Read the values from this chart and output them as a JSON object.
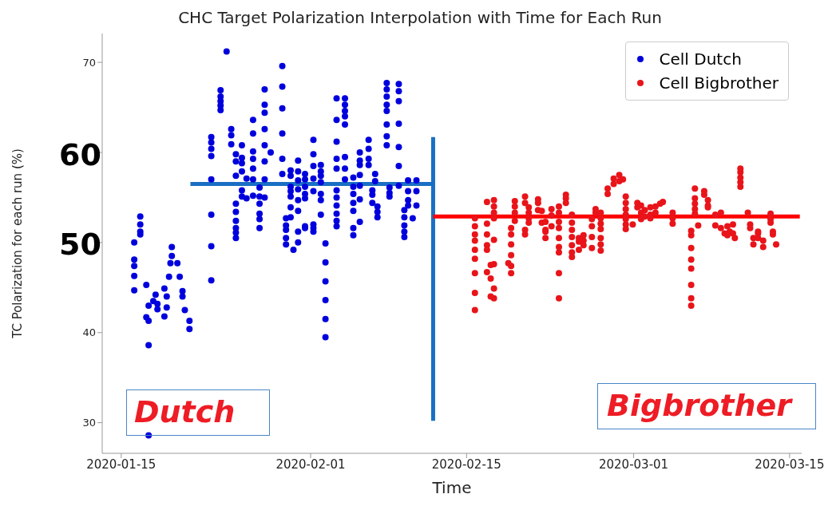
{
  "chart_data": {
    "type": "scatter",
    "title": "CHC Target Polarization Interpolation with Time for Each Run",
    "xlabel": "Time",
    "ylabel": "TC Polarization for each run (%)",
    "xlim": [
      "2020-01-13T07:00",
      "2020-03-16T02:00"
    ],
    "xticks": [
      "2020-01-15",
      "2020-02-01",
      "2020-02-15",
      "2020-03-01",
      "2020-03-15"
    ],
    "ylim": [
      26.6,
      73.2
    ],
    "yticks": [
      30,
      40,
      {
        "value": 50,
        "label": null
      },
      {
        "value": 60,
        "label": null
      },
      70
    ],
    "legend": "top right",
    "marker": "circle",
    "annotations": [
      "60",
      "50",
      "Dutch",
      "Bigbrother"
    ],
    "series": [
      {
        "name": "Cell Dutch",
        "color": "#0000dd",
        "x": [
          "2020-01-16T04:00",
          "2020-01-16T04:00",
          "2020-01-16T04:00",
          "2020-01-16T04:00",
          "2020-01-16T04:00",
          "2020-01-16T17:00",
          "2020-01-16T17:00",
          "2020-01-16T17:00",
          "2020-01-16T17:00",
          "2020-01-17T06:00",
          "2020-01-17T06:00",
          "2020-01-17T11:00",
          "2020-01-17T11:00",
          "2020-01-17T11:00",
          "2020-01-17T11:00",
          "2020-01-17T21:00",
          "2020-01-18T02:00",
          "2020-01-18T06:00",
          "2020-01-18T06:00",
          "2020-01-18T21:00",
          "2020-01-18T21:00",
          "2020-01-19T02:00",
          "2020-01-19T02:00",
          "2020-01-19T07:00",
          "2020-01-19T10:00",
          "2020-01-19T13:00",
          "2020-01-19T13:00",
          "2020-01-20T01:00",
          "2020-01-20T06:00",
          "2020-01-20T12:00",
          "2020-01-20T12:00",
          "2020-01-20T17:00",
          "2020-01-21T03:00",
          "2020-01-21T03:00",
          "2020-01-23T02:00",
          "2020-01-23T02:00",
          "2020-01-23T02:00",
          "2020-01-23T02:00",
          "2020-01-23T02:00",
          "2020-01-23T02:00",
          "2020-01-23T02:00",
          "2020-01-23T02:00",
          "2020-01-23T22:00",
          "2020-01-23T22:00",
          "2020-01-23T22:00",
          "2020-01-23T22:00",
          "2020-01-23T22:00",
          "2020-01-24T11:00",
          "2020-01-24T21:00",
          "2020-01-24T21:00",
          "2020-01-24T21:00",
          "2020-01-25T07:00",
          "2020-01-25T07:00",
          "2020-01-25T07:00",
          "2020-01-25T07:00",
          "2020-01-25T07:00",
          "2020-01-25T07:00",
          "2020-01-25T07:00",
          "2020-01-25T07:00",
          "2020-01-25T07:00",
          "2020-01-25T20:00",
          "2020-01-25T20:00",
          "2020-01-25T20:00",
          "2020-01-25T20:00",
          "2020-01-25T20:00",
          "2020-01-25T20:00",
          "2020-01-26T06:00",
          "2020-01-26T06:00",
          "2020-01-26T20:00",
          "2020-01-26T20:00",
          "2020-01-26T20:00",
          "2020-01-26T20:00",
          "2020-01-26T20:00",
          "2020-01-26T20:00",
          "2020-01-26T20:00",
          "2020-01-27T10:00",
          "2020-01-27T10:00",
          "2020-01-27T10:00",
          "2020-01-27T10:00",
          "2020-01-27T10:00",
          "2020-01-27T10:00",
          "2020-01-27T21:00",
          "2020-01-27T21:00",
          "2020-01-27T21:00",
          "2020-01-27T21:00",
          "2020-01-27T21:00",
          "2020-01-27T21:00",
          "2020-01-27T21:00",
          "2020-01-27T21:00",
          "2020-01-28T10:00",
          "2020-01-29T11:00",
          "2020-01-29T11:00",
          "2020-01-29T11:00",
          "2020-01-29T11:00",
          "2020-01-29T11:00",
          "2020-01-29T11:00",
          "2020-01-29T19:00",
          "2020-01-29T19:00",
          "2020-01-29T19:00",
          "2020-01-29T19:00",
          "2020-01-29T19:00",
          "2020-01-30T05:00",
          "2020-01-30T05:00",
          "2020-01-30T05:00",
          "2020-01-30T05:00",
          "2020-01-30T05:00",
          "2020-01-30T05:00",
          "2020-01-30T05:00",
          "2020-01-30T11:00",
          "2020-01-30T21:00",
          "2020-01-30T21:00",
          "2020-01-30T21:00",
          "2020-01-30T21:00",
          "2020-01-30T21:00",
          "2020-01-30T21:00",
          "2020-01-30T21:00",
          "2020-01-30T21:00",
          "2020-01-31T12:00",
          "2020-01-31T12:00",
          "2020-01-31T12:00",
          "2020-01-31T12:00",
          "2020-01-31T12:00",
          "2020-01-31T12:00",
          "2020-01-31T12:00",
          "2020-02-01T06:00",
          "2020-02-01T06:00",
          "2020-02-01T06:00",
          "2020-02-01T06:00",
          "2020-02-01T06:00",
          "2020-02-01T06:00",
          "2020-02-01T06:00",
          "2020-02-01T06:00",
          "2020-02-01T22:00",
          "2020-02-01T22:00",
          "2020-02-01T22:00",
          "2020-02-01T22:00",
          "2020-02-01T22:00",
          "2020-02-01T22:00",
          "2020-02-01T22:00",
          "2020-02-02T08:00",
          "2020-02-02T08:00",
          "2020-02-02T08:00",
          "2020-02-02T08:00",
          "2020-02-02T08:00",
          "2020-02-02T08:00",
          "2020-02-03T08:00",
          "2020-02-03T08:00",
          "2020-02-03T08:00",
          "2020-02-03T08:00",
          "2020-02-03T08:00",
          "2020-02-03T08:00",
          "2020-02-03T08:00",
          "2020-02-03T08:00",
          "2020-02-03T08:00",
          "2020-02-03T08:00",
          "2020-02-03T08:00",
          "2020-02-04T02:00",
          "2020-02-04T02:00",
          "2020-02-04T02:00",
          "2020-02-04T02:00",
          "2020-02-04T02:00",
          "2020-02-04T02:00",
          "2020-02-04T02:00",
          "2020-02-04T02:00",
          "2020-02-04T20:00",
          "2020-02-04T20:00",
          "2020-02-04T20:00",
          "2020-02-04T20:00",
          "2020-02-04T20:00",
          "2020-02-04T20:00",
          "2020-02-04T20:00",
          "2020-02-05T10:00",
          "2020-02-05T10:00",
          "2020-02-05T10:00",
          "2020-02-05T10:00",
          "2020-02-05T10:00",
          "2020-02-05T10:00",
          "2020-02-05T10:00",
          "2020-02-06T05:00",
          "2020-02-06T05:00",
          "2020-02-06T05:00",
          "2020-02-06T05:00",
          "2020-02-06T13:00",
          "2020-02-06T13:00",
          "2020-02-06T13:00",
          "2020-02-06T19:00",
          "2020-02-06T19:00",
          "2020-02-07T00:00",
          "2020-02-07T00:00",
          "2020-02-07T00:00",
          "2020-02-07T20:00",
          "2020-02-07T20:00",
          "2020-02-07T20:00",
          "2020-02-07T20:00",
          "2020-02-07T20:00",
          "2020-02-07T20:00",
          "2020-02-07T20:00",
          "2020-02-07T20:00",
          "2020-02-08T02:00",
          "2020-02-08T02:00",
          "2020-02-08T02:00",
          "2020-02-08T22:00",
          "2020-02-08T22:00",
          "2020-02-08T22:00",
          "2020-02-08T22:00",
          "2020-02-08T22:00",
          "2020-02-08T22:00",
          "2020-02-08T22:00",
          "2020-02-09T10:00",
          "2020-02-09T10:00",
          "2020-02-09T10:00",
          "2020-02-09T10:00",
          "2020-02-09T10:00",
          "2020-02-09T18:00",
          "2020-02-09T18:00",
          "2020-02-09T18:00",
          "2020-02-09T18:00",
          "2020-02-10T04:00",
          "2020-02-10T12:00",
          "2020-02-10T12:00",
          "2020-02-10T12:00"
        ],
        "values": [
          50.0,
          48.1,
          47.4,
          46.3,
          44.7,
          52.9,
          52.0,
          51.2,
          50.9,
          45.3,
          41.7,
          43.0,
          41.3,
          38.6,
          28.6,
          43.5,
          44.2,
          43.2,
          42.6,
          44.9,
          41.8,
          44.0,
          42.8,
          46.2,
          47.7,
          48.5,
          49.5,
          47.7,
          46.2,
          44.6,
          44.0,
          42.5,
          41.3,
          40.4,
          61.7,
          61.1,
          60.4,
          59.6,
          57.0,
          53.1,
          49.6,
          45.8,
          66.9,
          66.2,
          65.7,
          65.2,
          64.7,
          71.2,
          62.6,
          61.9,
          60.9,
          59.8,
          59.0,
          57.4,
          54.3,
          53.4,
          52.4,
          51.6,
          51.1,
          50.5,
          60.8,
          59.4,
          58.8,
          57.9,
          55.8,
          55.1,
          57.1,
          54.9,
          63.6,
          62.1,
          60.1,
          59.3,
          58.2,
          57.0,
          55.2,
          56.1,
          55.1,
          54.3,
          53.2,
          52.6,
          51.6,
          67.0,
          65.3,
          64.4,
          62.6,
          60.8,
          59.0,
          57.0,
          55.0,
          60.0,
          69.6,
          67.3,
          64.9,
          62.1,
          59.3,
          57.6,
          52.7,
          51.9,
          51.4,
          50.5,
          49.8,
          58.0,
          57.4,
          56.2,
          55.7,
          55.1,
          53.9,
          52.8,
          49.2,
          59.1,
          57.9,
          56.9,
          55.9,
          54.7,
          53.5,
          51.2,
          50.0,
          57.6,
          57.0,
          56.2,
          55.4,
          54.9,
          51.8,
          51.6,
          61.4,
          59.8,
          58.5,
          57.1,
          55.7,
          52.0,
          51.6,
          51.2,
          58.6,
          57.9,
          57.4,
          56.7,
          55.4,
          54.7,
          53.1,
          49.9,
          47.8,
          45.7,
          43.6,
          41.5,
          39.5,
          66.0,
          63.6,
          61.2,
          59.3,
          58.2,
          55.8,
          55.0,
          54.1,
          53.2,
          52.4,
          51.8,
          66.0,
          65.3,
          64.6,
          64.0,
          63.1,
          59.5,
          58.2,
          57.0,
          57.2,
          56.2,
          55.4,
          54.4,
          53.5,
          51.6,
          50.8,
          60.0,
          59.1,
          58.6,
          57.5,
          56.3,
          54.8,
          52.3,
          61.4,
          60.4,
          59.3,
          58.6,
          55.8,
          55.3,
          54.4,
          57.6,
          56.8,
          54.0,
          53.4,
          52.8,
          67.7,
          67.0,
          66.2,
          65.3,
          64.6,
          63.1,
          61.8,
          60.8,
          56.1,
          55.5,
          55.1,
          67.6,
          66.8,
          65.7,
          63.2,
          60.6,
          58.5,
          56.3,
          53.6,
          52.8,
          51.9,
          51.2,
          50.6,
          56.9,
          55.7,
          54.7,
          54.1,
          52.7,
          56.9,
          55.7,
          54.1
        ]
      },
      {
        "name": "Cell Bigbrother",
        "color": "#e8141a",
        "x": [
          "2020-02-15T18:00",
          "2020-02-15T18:00",
          "2020-02-15T18:00",
          "2020-02-15T18:00",
          "2020-02-15T18:00",
          "2020-02-15T18:00",
          "2020-02-15T18:00",
          "2020-02-15T18:00",
          "2020-02-15T18:00",
          "2020-02-16T20:00",
          "2020-02-16T20:00",
          "2020-02-16T20:00",
          "2020-02-16T20:00",
          "2020-02-16T20:00",
          "2020-02-16T20:00",
          "2020-02-17T11:00",
          "2020-02-17T11:00",
          "2020-02-17T11:00",
          "2020-02-17T11:00",
          "2020-02-17T11:00",
          "2020-02-17T11:00",
          "2020-02-17T11:00",
          "2020-02-17T11:00",
          "2020-02-17T04:00",
          "2020-02-17T04:00",
          "2020-02-17T04:00",
          "2020-02-19T00:00",
          "2020-02-19T00:00",
          "2020-02-19T00:00",
          "2020-02-19T00:00",
          "2020-02-19T00:00",
          "2020-02-19T00:00",
          "2020-02-19T08:00",
          "2020-02-19T08:00",
          "2020-02-19T08:00",
          "2020-02-19T08:00",
          "2020-02-18T18:00",
          "2020-02-20T06:00",
          "2020-02-20T06:00",
          "2020-02-20T06:00",
          "2020-02-20T06:00",
          "2020-02-20T14:00",
          "2020-02-20T14:00",
          "2020-02-20T14:00",
          "2020-02-20T14:00",
          "2020-02-21T10:00",
          "2020-02-21T10:00",
          "2020-02-21T10:00",
          "2020-02-21T18:00",
          "2020-02-21T18:00",
          "2020-02-22T02:00",
          "2020-02-22T02:00",
          "2020-02-22T02:00",
          "2020-02-22T02:00",
          "2020-02-22T15:00",
          "2020-02-22T15:00",
          "2020-02-22T15:00",
          "2020-02-23T07:00",
          "2020-02-23T07:00",
          "2020-02-23T07:00",
          "2020-02-23T07:00",
          "2020-02-23T07:00",
          "2020-02-23T07:00",
          "2020-02-23T07:00",
          "2020-02-23T07:00",
          "2020-02-23T07:00",
          "2020-02-23T22:00",
          "2020-02-23T22:00",
          "2020-02-23T22:00",
          "2020-02-24T11:00",
          "2020-02-24T11:00",
          "2020-02-24T11:00",
          "2020-02-24T11:00",
          "2020-02-24T11:00",
          "2020-02-24T11:00",
          "2020-02-24T11:00",
          "2020-02-25T02:00",
          "2020-02-25T02:00",
          "2020-02-25T02:00",
          "2020-02-25T12:00",
          "2020-02-25T12:00",
          "2020-02-25T12:00",
          "2020-02-26T06:00",
          "2020-02-26T06:00",
          "2020-02-26T06:00",
          "2020-02-26T06:00",
          "2020-02-26T14:00",
          "2020-02-26T14:00",
          "2020-02-27T01:00",
          "2020-02-27T01:00",
          "2020-02-27T01:00",
          "2020-02-27T01:00",
          "2020-02-27T01:00",
          "2020-02-27T01:00",
          "2020-02-27T01:00",
          "2020-02-27T16:00",
          "2020-02-27T16:00",
          "2020-02-28T05:00",
          "2020-02-28T05:00",
          "2020-02-28T17:00",
          "2020-02-28T17:00",
          "2020-02-29T01:00",
          "2020-02-29T07:00",
          "2020-02-29T07:00",
          "2020-02-29T07:00",
          "2020-02-29T07:00",
          "2020-02-29T07:00",
          "2020-02-29T07:00",
          "2020-02-29T07:00",
          "2020-02-29T22:00",
          "2020-03-01T08:00",
          "2020-03-01T08:00",
          "2020-03-01T16:00",
          "2020-03-01T16:00",
          "2020-03-01T16:00",
          "2020-03-02T00:00",
          "2020-03-02T00:00",
          "2020-03-02T12:00",
          "2020-03-02T12:00",
          "2020-03-02T12:00",
          "2020-03-02T23:00",
          "2020-03-02T23:00",
          "2020-03-03T09:00",
          "2020-03-03T15:00",
          "2020-03-04T12:00",
          "2020-03-04T12:00",
          "2020-03-04T12:00",
          "2020-03-06T04:00",
          "2020-03-06T04:00",
          "2020-03-06T04:00",
          "2020-03-06T04:00",
          "2020-03-06T04:00",
          "2020-03-06T04:00",
          "2020-03-06T04:00",
          "2020-03-06T04:00",
          "2020-03-06T12:00",
          "2020-03-06T12:00",
          "2020-03-06T12:00",
          "2020-03-06T12:00",
          "2020-03-06T12:00",
          "2020-03-06T19:00",
          "2020-03-07T08:00",
          "2020-03-07T08:00",
          "2020-03-07T16:00",
          "2020-03-07T16:00",
          "2020-03-07T16:00",
          "2020-03-08T08:00",
          "2020-03-08T08:00",
          "2020-03-08T20:00",
          "2020-03-08T20:00",
          "2020-03-09T04:00",
          "2020-03-09T10:00",
          "2020-03-09T10:00",
          "2020-03-09T15:00",
          "2020-03-09T22:00",
          "2020-03-09T22:00",
          "2020-03-10T02:00",
          "2020-03-10T14:00",
          "2020-03-10T14:00",
          "2020-03-10T14:00",
          "2020-03-10T14:00",
          "2020-03-10T14:00",
          "2020-03-11T06:00",
          "2020-03-11T11:00",
          "2020-03-11T11:00",
          "2020-03-11T18:00",
          "2020-03-11T18:00",
          "2020-03-12T04:00",
          "2020-03-12T04:00",
          "2020-03-12T04:00",
          "2020-03-12T15:00",
          "2020-03-12T15:00",
          "2020-03-13T07:00",
          "2020-03-13T07:00",
          "2020-03-13T07:00",
          "2020-03-13T12:00",
          "2020-03-13T12:00",
          "2020-03-13T19:00"
        ],
        "values": [
          52.7,
          51.8,
          50.9,
          50.2,
          49.2,
          48.2,
          46.6,
          44.4,
          42.5,
          54.5,
          52.1,
          50.9,
          49.7,
          49.2,
          46.7,
          54.7,
          54.0,
          53.3,
          52.7,
          50.3,
          47.6,
          44.9,
          43.8,
          47.5,
          46.0,
          44.0,
          51.6,
          50.9,
          49.8,
          48.6,
          47.4,
          46.6,
          54.6,
          54.0,
          53.3,
          52.4,
          47.7,
          55.1,
          54.4,
          51.4,
          50.9,
          53.9,
          53.3,
          52.7,
          52.2,
          54.8,
          54.4,
          53.6,
          53.5,
          52.2,
          52.3,
          51.4,
          51.2,
          50.5,
          53.7,
          53.0,
          51.8,
          54.0,
          53.3,
          52.3,
          51.6,
          50.5,
          49.5,
          48.9,
          46.6,
          43.8,
          55.3,
          54.9,
          54.4,
          53.1,
          52.2,
          51.4,
          50.6,
          49.7,
          48.9,
          48.4,
          50.5,
          50.1,
          49.2,
          50.2,
          49.7,
          50.8,
          51.8,
          52.6,
          50.6,
          49.4,
          53.3,
          53.7,
          53.3,
          52.7,
          52.1,
          51.5,
          50.5,
          49.8,
          49.1,
          56.0,
          55.4,
          57.1,
          56.5,
          57.5,
          56.8,
          57.0,
          55.1,
          54.4,
          53.7,
          53.1,
          52.6,
          52.0,
          51.5,
          52.0,
          54.4,
          53.9,
          53.3,
          52.6,
          54.1,
          52.9,
          53.6,
          53.1,
          52.7,
          53.9,
          53.3,
          54.0,
          54.3,
          54.5,
          53.3,
          52.7,
          52.1,
          50.8,
          49.4,
          48.1,
          47.1,
          45.3,
          43.8,
          43.0,
          51.3,
          56.0,
          54.9,
          54.3,
          53.7,
          53.2,
          51.9,
          55.7,
          55.3,
          54.7,
          54.1,
          53.9,
          53.1,
          51.9,
          53.3,
          51.6,
          51.0,
          51.8,
          50.8,
          51.2,
          52.0,
          51.0,
          50.5,
          58.2,
          57.8,
          57.2,
          56.7,
          56.2,
          53.3,
          52.0,
          51.6,
          50.5,
          49.8,
          51.0,
          51.2,
          50.5,
          49.5,
          50.2,
          53.2,
          52.6,
          52.2,
          51.2,
          50.9,
          49.8
        ]
      },
      {
        "type": "line",
        "marker": "none",
        "color": "#1a6fc4",
        "x": [
          "2020-01-21T05:00",
          "2020-02-12"
        ],
        "values": [
          56.5,
          56.5
        ]
      },
      {
        "type": "line",
        "marker": "none",
        "color": "#1a6fc4",
        "x": [
          "2020-02-12",
          "2020-02-12"
        ],
        "values": [
          61.7,
          30.2
        ]
      },
      {
        "type": "line",
        "marker": "none",
        "color": "#ff0000",
        "x": [
          "2020-02-12",
          "2020-03-15T22:00"
        ],
        "values": [
          52.9,
          52.9
        ]
      }
    ]
  }
}
